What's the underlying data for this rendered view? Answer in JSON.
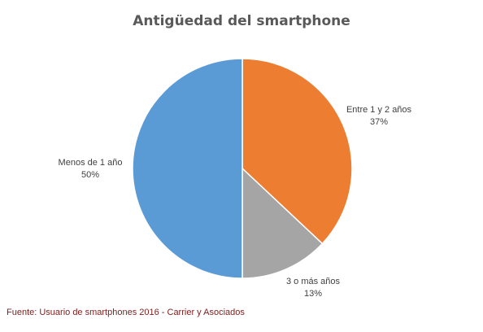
{
  "chart_data": {
    "type": "pie",
    "title": "Antigüedad del smartphone",
    "slices": [
      {
        "label": "Entre 1 y 2 años",
        "value_label": "37%",
        "value": 37,
        "color": "#ED7D31"
      },
      {
        "label": "3 o más años",
        "value_label": "13%",
        "value": 13,
        "color": "#A5A5A5"
      },
      {
        "label": "Menos de 1 año",
        "value_label": "50%",
        "value": 50,
        "color": "#5B9BD5"
      }
    ],
    "start_angle_deg": 0,
    "direction": "clockwise"
  },
  "source_note": "Fuente: Usuario de smartphones 2016 - Carrier y Asociados",
  "colors": {
    "source_text": "#7F1D1D",
    "label_text": "#404040",
    "title_text": "#595959"
  }
}
